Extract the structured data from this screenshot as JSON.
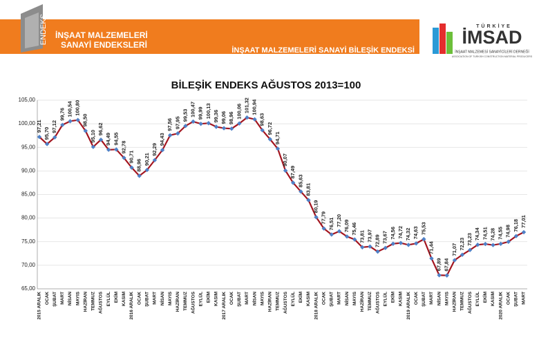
{
  "header": {
    "logo_text": "ENDEKS",
    "left_title": [
      "İNŞAAT MALZEMELERİ",
      "SANAYİ ENDEKSLERİ"
    ],
    "right_title": "İNŞAAT MALZEMELERİ SANAYİ BİLEŞİK ENDEKSİ",
    "brand_top": "TÜRKİYE",
    "brand": "İMSAD",
    "brand_sub": "İNŞAAT MALZEMESİ SANAYİCİLERİ DERNEĞİ",
    "brand_sub2": "ASSOCIATION OF TURKISH CONSTRUCTION MATERIAL PRODUCERS"
  },
  "chart_data": {
    "type": "line",
    "title": "BİLEŞİK  ENDEKS AĞUSTOS 2013=100",
    "categories": [
      "2015 ARALIK",
      "OCAK",
      "ŞUBAT",
      "MART",
      "NİSAN",
      "MAYIS",
      "HAZİRAN",
      "TEMMUZ",
      "AĞUSTOS",
      "EYLÜL",
      "EKİM",
      "KASIM",
      "2016 ARALIK",
      "OCAK",
      "ŞUBAT",
      "MART",
      "NİSAN",
      "MAYIS",
      "HAZİRAN",
      "TEMMUZ",
      "AĞUSTOS",
      "EYLÜL",
      "EKİM",
      "KASIM",
      "2017 ARALIK",
      "OCAK",
      "ŞUBAT",
      "MART",
      "NİSAN",
      "MAYIS",
      "HAZİRAN",
      "TEMMUZ",
      "AĞUSTOS",
      "EYLÜL",
      "EKİM",
      "KASIM",
      "2018 ARALIK",
      "OCAK",
      "ŞUBAT",
      "MART",
      "NİSAN",
      "MAYIS",
      "HAZİRAN",
      "TEMMUZ",
      "AĞUSTOS",
      "EYLÜL",
      "EKİM",
      "KASIM",
      "2019 ARALIK",
      "OCAK",
      "ŞUBAT",
      "MART",
      "NİSAN",
      "MAYIS",
      "HAZİRAN",
      "TEMMUZ",
      "AĞUSTOS",
      "EYLÜL",
      "EKİM",
      "KASIM",
      "2020 ARALIK",
      "OCAK",
      "ŞUBAT",
      "MART"
    ],
    "values": [
      97.21,
      95.7,
      97.12,
      99.76,
      100.54,
      100.8,
      98.5,
      95.1,
      96.62,
      94.49,
      94.55,
      92.78,
      90.71,
      88.96,
      90.21,
      92.29,
      94.43,
      97.56,
      97.95,
      99.53,
      100.47,
      99.99,
      100.13,
      99.36,
      99.06,
      98.96,
      100.06,
      101.32,
      100.94,
      98.63,
      96.72,
      94.71,
      90.07,
      87.49,
      85.63,
      83.81,
      80.19,
      77.79,
      76.51,
      77.2,
      76.09,
      75.46,
      73.81,
      73.97,
      72.89,
      73.67,
      74.56,
      74.72,
      74.32,
      74.63,
      75.53,
      71.44,
      67.89,
      67.84,
      71.07,
      72.23,
      73.23,
      74.34,
      74.51,
      74.28,
      74.55,
      74.98,
      76.18,
      77.01
    ],
    "value_labels": [
      "97,21",
      "95,70",
      "97,12",
      "99,76",
      "100,54",
      "100,80",
      "98,50",
      "95,10",
      "96,62",
      "94,49",
      "94,55",
      "92,78",
      "90,71",
      "88,96",
      "90,21",
      "92,29",
      "94,43",
      "97,56",
      "97,95",
      "99,53",
      "100,47",
      "99,99",
      "100,13",
      "99,36",
      "99,06",
      "98,96",
      "100,06",
      "101,32",
      "100,94",
      "98,63",
      "96,72",
      "94,71",
      "90,07",
      "87,49",
      "85,63",
      "83,81",
      "80,19",
      "77,79",
      "76,51",
      "77,20",
      "76,09",
      "75,46",
      "73,81",
      "73,97",
      "72,89",
      "73,67",
      "74,56",
      "74,72",
      "74,32",
      "74,63",
      "75,53",
      "71,44",
      "67,89",
      "67,84",
      "71,07",
      "72,23",
      "73,23",
      "74,34",
      "74,51",
      "74,28",
      "74,55",
      "74,98",
      "76,18",
      "77,01"
    ],
    "color": "#a3151f",
    "marker_color": "#4f81c7",
    "ylim": [
      65,
      105
    ],
    "yticks": [
      {
        "value": 65,
        "label": "65,00"
      },
      {
        "value": 70,
        "label": "70,00"
      },
      {
        "value": 75,
        "label": "75,00"
      },
      {
        "value": 80,
        "label": "80,00"
      },
      {
        "value": 85,
        "label": "85,00"
      },
      {
        "value": 90,
        "label": "90,00"
      },
      {
        "value": 95,
        "label": "95,00"
      },
      {
        "value": 100,
        "label": "100,00"
      },
      {
        "value": 105,
        "label": "105,00"
      }
    ],
    "grid": true
  }
}
